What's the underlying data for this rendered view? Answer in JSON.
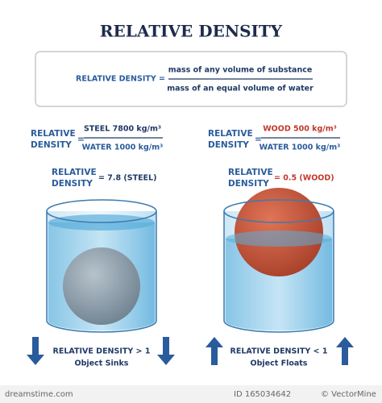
{
  "title": "RELATIVE DENSITY",
  "definition": {
    "label": "RELATIVE DENSITY =",
    "numerator": "mass of any volume of substance",
    "denominator": "mass of an equal volume of water"
  },
  "examples": [
    {
      "label_lines": [
        "RELATIVE",
        "DENSITY"
      ],
      "equals": "=",
      "numerator": "STEEL 7800 kg/m³",
      "denominator": "WATER 1000 kg/m³",
      "result_lines": [
        "RELATIVE",
        "DENSITY"
      ],
      "result": "= 7.8 (STEEL)",
      "condition": "RELATIVE DENSITY > 1",
      "outcome": "Object Sinks"
    },
    {
      "label_lines": [
        "RELATIVE",
        "DENSITY"
      ],
      "equals": "=",
      "numerator": "WOOD 500 kg/m³",
      "denominator": "WATER 1000 kg/m³",
      "result_lines": [
        "RELATIVE",
        "DENSITY"
      ],
      "result": "= 0.5 (WOOD)",
      "condition": "RELATIVE DENSITY < 1",
      "outcome": "Object Floats"
    }
  ],
  "footer": {
    "site": "dreamstime.com",
    "id": "ID 165034642",
    "credit": "© VectorMine"
  }
}
